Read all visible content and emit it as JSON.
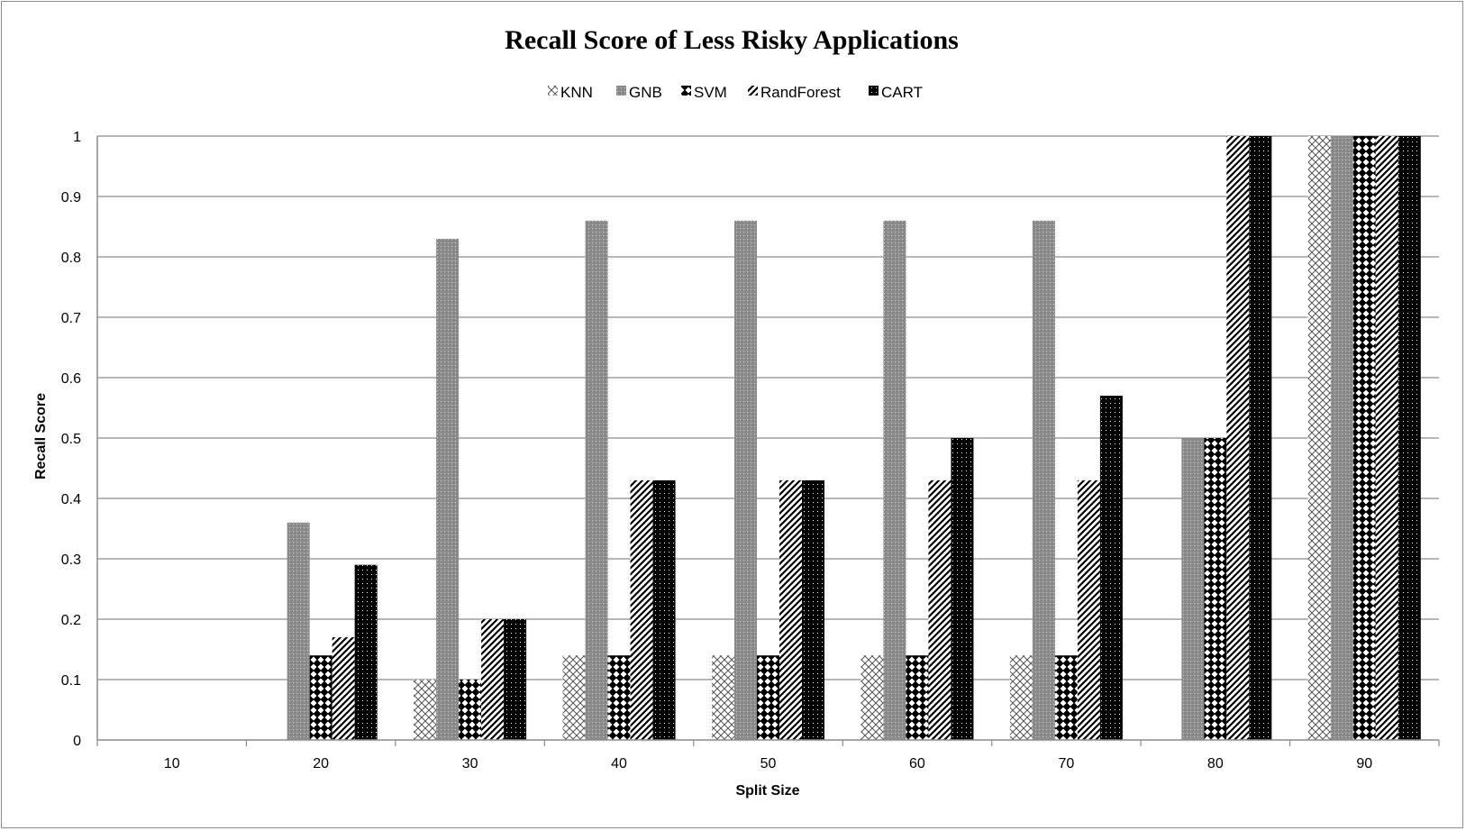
{
  "chart_data": {
    "type": "bar",
    "title": "Recall Score of Less Risky Applications",
    "xlabel": "Split Size",
    "ylabel": "Recall Score",
    "categories": [
      "10",
      "20",
      "30",
      "40",
      "50",
      "60",
      "70",
      "80",
      "90"
    ],
    "y_ticks": [
      "0",
      "0.1",
      "0.2",
      "0.3",
      "0.4",
      "0.5",
      "0.6",
      "0.7",
      "0.8",
      "0.9",
      "1"
    ],
    "ylim": [
      0,
      1
    ],
    "grid": "horizontal",
    "legend_position": "top-center",
    "series": [
      {
        "name": "KNN",
        "pattern": "crosshatch",
        "values": [
          0,
          0,
          0.1,
          0.14,
          0.14,
          0.14,
          0.14,
          0,
          1
        ]
      },
      {
        "name": "GNB",
        "pattern": "gray-dots",
        "values": [
          0,
          0.36,
          0.83,
          0.86,
          0.86,
          0.86,
          0.86,
          0.5,
          1
        ]
      },
      {
        "name": "SVM",
        "pattern": "checker",
        "values": [
          0,
          0.14,
          0.1,
          0.14,
          0.14,
          0.14,
          0.14,
          0.5,
          1
        ]
      },
      {
        "name": "RandForest",
        "pattern": "diagonal",
        "values": [
          0,
          0.17,
          0.2,
          0.43,
          0.43,
          0.43,
          0.43,
          1,
          1
        ]
      },
      {
        "name": "CART",
        "pattern": "black-dots",
        "values": [
          0,
          0.29,
          0.2,
          0.43,
          0.43,
          0.5,
          0.57,
          1,
          1
        ]
      }
    ],
    "colors": {
      "axis": "#8c8c8c",
      "grid": "#8c8c8c",
      "text": "#000000"
    }
  }
}
